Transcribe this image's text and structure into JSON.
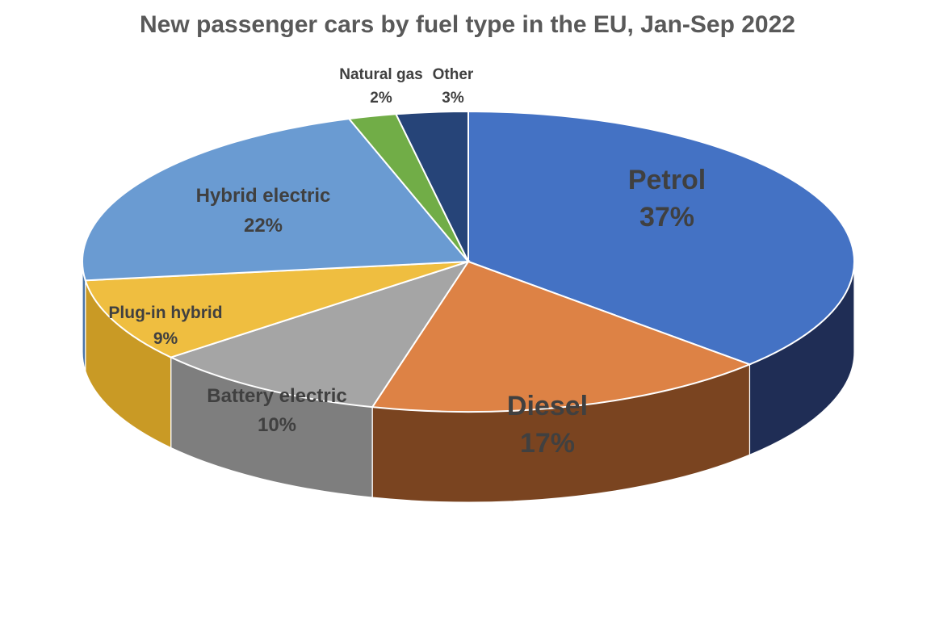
{
  "chart_data": {
    "type": "pie",
    "title": "New passenger cars by fuel type in the EU, Jan-Sep 2022",
    "three_d": true,
    "legend": "none",
    "slices": [
      {
        "label": "Petrol",
        "value": 37,
        "value_text": "37%",
        "color": "#4472C4",
        "side_color": "#1F2D55"
      },
      {
        "label": "Diesel",
        "value": 17,
        "value_text": "17%",
        "color": "#DD8245",
        "side_color": "#7A4420"
      },
      {
        "label": "Battery electric",
        "value": 10,
        "value_text": "10%",
        "color": "#A5A5A5",
        "side_color": "#7E7E7E"
      },
      {
        "label": "Plug-in hybrid",
        "value": 9,
        "value_text": "9%",
        "color": "#EFBE40",
        "side_color": "#C99A25"
      },
      {
        "label": "Hybrid electric",
        "value": 22,
        "value_text": "22%",
        "color": "#6A9BD2",
        "side_color": "#4A74A8"
      },
      {
        "label": "Natural gas",
        "value": 2,
        "value_text": "2%",
        "color": "#71AD47",
        "side_color": "#4E7A30"
      },
      {
        "label": "Other",
        "value": 3,
        "value_text": "3%",
        "color": "#264478",
        "side_color": "#15284A"
      }
    ]
  }
}
